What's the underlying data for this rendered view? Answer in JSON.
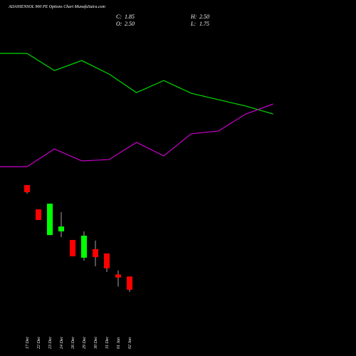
{
  "chart_data": {
    "type": "candlestick",
    "title": "ADANIENSOL 900 PE Options Chart MunafaSutra.com",
    "header": [
      {
        "name": "C:",
        "label": "1.85"
      },
      {
        "name": "H:",
        "label": "2.50"
      },
      {
        "name": "O:",
        "label": "2.50"
      },
      {
        "name": "L:",
        "label": "1.75"
      }
    ],
    "categories": [
      "17 Dec",
      "22 Dec",
      "23 Dec",
      "24 Dec",
      "26 Dec",
      "29 Dec",
      "30 Dec",
      "31 Dec",
      "01 Jan",
      "02 Jan"
    ],
    "open": [
      6.98,
      5.79,
      4.53,
      4.71,
      4.29,
      3.42,
      3.84,
      3.63,
      2.6,
      2.5
    ],
    "high": [
      6.98,
      5.79,
      6.07,
      5.65,
      4.29,
      4.71,
      4.26,
      3.63,
      2.8,
      2.5
    ],
    "low": [
      6.56,
      5.27,
      4.53,
      4.43,
      3.49,
      3.28,
      3.0,
      2.72,
      2.0,
      1.75
    ],
    "close": [
      6.63,
      5.27,
      6.07,
      4.95,
      3.49,
      4.5,
      3.45,
      2.9,
      2.45,
      1.85
    ],
    "up_color": "#00ff00",
    "down_color": "#ff0000",
    "series": [
      {
        "color": "#00dd00",
        "values": [
          13.43,
          12.59,
          13.08,
          12.42,
          11.51,
          12.1,
          11.48,
          11.16,
          10.85,
          10.46
        ]
      },
      {
        "color": "#cc00cc",
        "values": [
          7.88,
          8.75,
          8.16,
          8.23,
          9.07,
          8.41,
          9.49,
          9.63,
          10.46,
          10.95
        ]
      }
    ],
    "ylim": [
      0,
      15
    ]
  }
}
